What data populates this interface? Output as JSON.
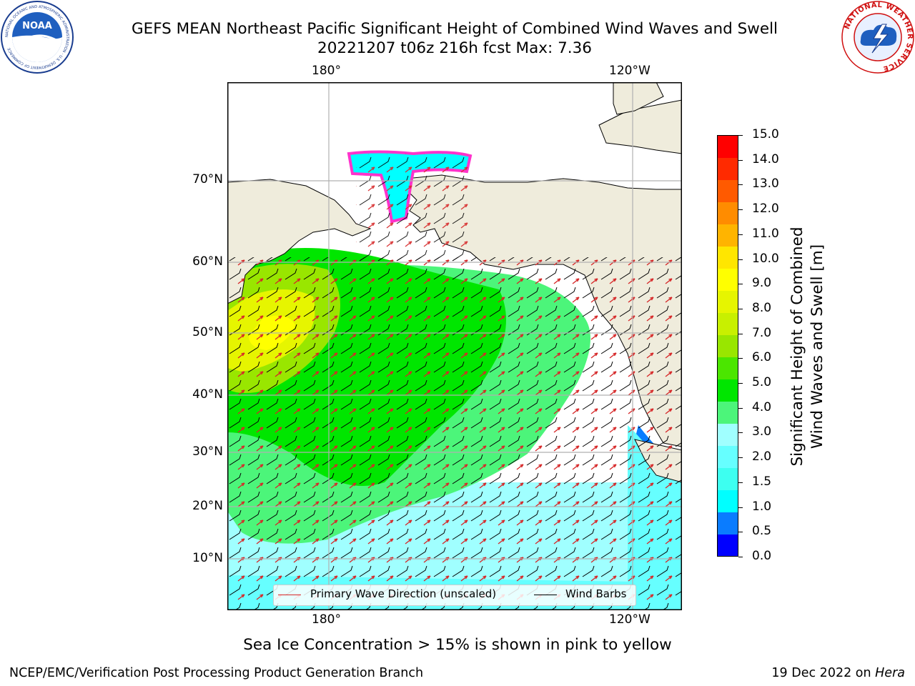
{
  "title": {
    "line1": "GEFS MEAN Northeast Pacific Significant Height of Combined Wind Waves and Swell",
    "line2": "20221207 t06z 216h fcst   Max: 7.36"
  },
  "map": {
    "lon_labels_top": [
      "180°",
      "120°W"
    ],
    "lon_labels_bottom": [
      "180°",
      "120°W"
    ],
    "lat_labels": [
      "70°N",
      "60°N",
      "50°N",
      "40°N",
      "30°N",
      "20°N",
      "10°N"
    ],
    "colors": {
      "land": "#efecdc",
      "coast": "#000000",
      "grid": "#b0b0b0",
      "frame": "#000000"
    }
  },
  "colorbar": {
    "title_line1": "Significant Height of Combined",
    "title_line2": "Wind Waves and Swell [m]",
    "ticks": [
      "15.0",
      "14.0",
      "13.0",
      "12.0",
      "11.0",
      "10.0",
      "9.0",
      "8.0",
      "7.0",
      "6.0",
      "5.0",
      "4.0",
      "3.0",
      "2.0",
      "1.5",
      "1.0",
      "0.5",
      "0.0"
    ],
    "colors": [
      "#0000ff",
      "#0a7cff",
      "#00ffff",
      "#3dfff0",
      "#66ffff",
      "#a0ffff",
      "#4cf57a",
      "#00e600",
      "#4be600",
      "#99e600",
      "#c8f000",
      "#e6f500",
      "#ffff00",
      "#ffe600",
      "#ffb400",
      "#ff8c00",
      "#ff5a00",
      "#ff2a00",
      "#ff0000"
    ]
  },
  "legend": {
    "items": [
      {
        "label": "Primary Wave Direction (unscaled)",
        "color": "#d62728"
      },
      {
        "label": "Wind Barbs",
        "color": "#000000"
      }
    ]
  },
  "caption": "Sea Ice Concentration > 15% is shown in pink to yellow",
  "footer": {
    "left": "NCEP/EMC/Verification Post Processing Product Generation Branch",
    "right_date": "19 Dec 2022 on ",
    "right_host": "Hera"
  },
  "logos": {
    "noaa": {
      "text": "NOAA",
      "ring_text": "NATIONAL OCEANIC AND ATMOSPHERIC ADMINISTRATION · U.S. DEPARTMENT OF COMMERCE"
    },
    "nws": {
      "text": "NATIONAL WEATHER SERVICE"
    }
  }
}
